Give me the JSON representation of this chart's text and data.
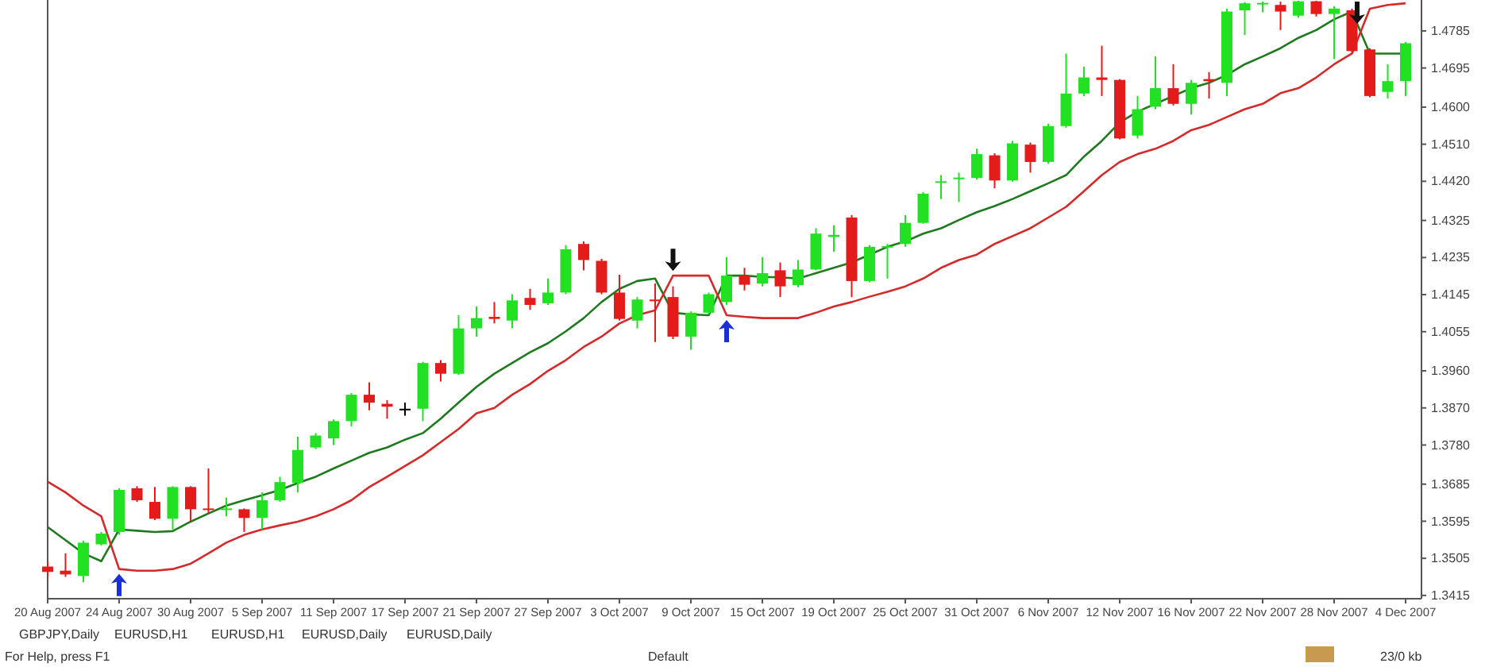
{
  "chart_data": {
    "type": "candlestick",
    "categories": [
      "20 Aug 2007",
      null,
      null,
      null,
      "24 Aug 2007",
      null,
      null,
      null,
      "30 Aug 2007",
      null,
      null,
      null,
      "5 Sep 2007",
      null,
      null,
      null,
      "11 Sep 2007",
      null,
      null,
      null,
      "17 Sep 2007",
      null,
      null,
      null,
      "21 Sep 2007",
      null,
      null,
      null,
      "27 Sep 2007",
      null,
      null,
      null,
      "3 Oct 2007",
      null,
      null,
      null,
      "9 Oct 2007",
      null,
      null,
      null,
      "15 Oct 2007",
      null,
      null,
      null,
      "19 Oct 2007",
      null,
      null,
      null,
      "25 Oct 2007",
      null,
      null,
      null,
      "31 Oct 2007",
      null,
      null,
      null,
      "6 Nov 2007",
      null,
      null,
      null,
      "12 Nov 2007",
      null,
      null,
      null,
      "16 Nov 2007",
      null,
      null,
      null,
      "22 Nov 2007",
      null,
      null,
      null,
      "28 Nov 2007",
      null,
      null,
      null,
      "4 Dec 2007"
    ],
    "ohlc": [
      [
        1.3485,
        1.3498,
        1.346,
        1.3472
      ],
      [
        1.3475,
        1.3517,
        1.346,
        1.3466
      ],
      [
        1.3462,
        1.3547,
        1.3447,
        1.3543
      ],
      [
        1.3539,
        1.3569,
        1.3536,
        1.3565
      ],
      [
        1.3569,
        1.3675,
        1.3562,
        1.3671
      ],
      [
        1.3675,
        1.368,
        1.3642,
        1.3646
      ],
      [
        1.3642,
        1.3678,
        1.3598,
        1.3601
      ],
      [
        1.3601,
        1.368,
        1.3575,
        1.3678
      ],
      [
        1.3678,
        1.368,
        1.3594,
        1.3624
      ],
      [
        1.3626,
        1.3723,
        1.3614,
        1.3624
      ],
      [
        1.3624,
        1.3652,
        1.3607,
        1.3626
      ],
      [
        1.3624,
        1.3626,
        1.3569,
        1.3603
      ],
      [
        1.3603,
        1.3665,
        1.3575,
        1.3646
      ],
      [
        1.3646,
        1.3703,
        1.3642,
        1.369
      ],
      [
        1.3688,
        1.38,
        1.3665,
        1.3768
      ],
      [
        1.3774,
        1.3809,
        1.377,
        1.3803
      ],
      [
        1.3796,
        1.3842,
        1.378,
        1.3838
      ],
      [
        1.3838,
        1.3906,
        1.3825,
        1.3902
      ],
      [
        1.3902,
        1.3932,
        1.3864,
        1.3883
      ],
      [
        1.388,
        1.3889,
        1.3844,
        1.3873
      ],
      [
        1.3868,
        1.3883,
        1.3851,
        1.3866
      ],
      [
        1.3868,
        1.3982,
        1.3838,
        1.3979
      ],
      [
        1.3979,
        1.3986,
        1.3934,
        1.3953
      ],
      [
        1.3953,
        1.4095,
        1.395,
        1.4063
      ],
      [
        1.4063,
        1.4116,
        1.4043,
        1.4088
      ],
      [
        1.4091,
        1.4127,
        1.4075,
        1.4086
      ],
      [
        1.4082,
        1.4146,
        1.4063,
        1.4131
      ],
      [
        1.4137,
        1.4159,
        1.4108,
        1.412
      ],
      [
        1.4124,
        1.4184,
        1.412,
        1.415
      ],
      [
        1.415,
        1.4265,
        1.4146,
        1.4255
      ],
      [
        1.4268,
        1.4274,
        1.4204,
        1.4229
      ],
      [
        1.4227,
        1.4232,
        1.4146,
        1.415
      ],
      [
        1.415,
        1.4193,
        1.4082,
        1.4086
      ],
      [
        1.4082,
        1.4139,
        1.4063,
        1.4133
      ],
      [
        1.4133,
        1.4172,
        1.403,
        1.4129
      ],
      [
        1.4139,
        1.4165,
        1.4037,
        1.4043
      ],
      [
        1.4043,
        1.4104,
        1.4011,
        1.4101
      ],
      [
        1.4101,
        1.415,
        1.4098,
        1.4146
      ],
      [
        1.4127,
        1.4236,
        1.412,
        1.4191
      ],
      [
        1.4191,
        1.421,
        1.4155,
        1.4169
      ],
      [
        1.4172,
        1.4236,
        1.4165,
        1.4197
      ],
      [
        1.4204,
        1.4223,
        1.4139,
        1.4165
      ],
      [
        1.4168,
        1.4229,
        1.4163,
        1.4206
      ],
      [
        1.4206,
        1.4306,
        1.4204,
        1.4293
      ],
      [
        1.4285,
        1.4313,
        1.4249,
        1.429
      ],
      [
        1.4332,
        1.4338,
        1.4139,
        1.4178
      ],
      [
        1.4178,
        1.4265,
        1.4175,
        1.4261
      ],
      [
        1.4259,
        1.4268,
        1.4184,
        1.4263
      ],
      [
        1.4268,
        1.4338,
        1.4261,
        1.4319
      ],
      [
        1.4319,
        1.4394,
        1.4317,
        1.439
      ],
      [
        1.4418,
        1.4435,
        1.4377,
        1.442
      ],
      [
        1.4427,
        1.4441,
        1.437,
        1.4429
      ],
      [
        1.4428,
        1.4499,
        1.4424,
        1.4486
      ],
      [
        1.4483,
        1.4488,
        1.4403,
        1.4422
      ],
      [
        1.4422,
        1.4518,
        1.4419,
        1.4512
      ],
      [
        1.4509,
        1.4514,
        1.4441,
        1.4467
      ],
      [
        1.4467,
        1.456,
        1.4463,
        1.4554
      ],
      [
        1.4554,
        1.473,
        1.455,
        1.4633
      ],
      [
        1.4633,
        1.4698,
        1.4627,
        1.4672
      ],
      [
        1.4672,
        1.4749,
        1.4627,
        1.4666
      ],
      [
        1.4666,
        1.4668,
        1.4522,
        1.4524
      ],
      [
        1.4531,
        1.4627,
        1.4524,
        1.4595
      ],
      [
        1.4601,
        1.4723,
        1.4595,
        1.4646
      ],
      [
        1.4646,
        1.4704,
        1.4604,
        1.4608
      ],
      [
        1.4608,
        1.4666,
        1.4582,
        1.4659
      ],
      [
        1.4668,
        1.4685,
        1.4621,
        1.4663
      ],
      [
        1.4659,
        1.4839,
        1.4627,
        1.4832
      ],
      [
        1.4835,
        1.4855,
        1.4775,
        1.4852
      ],
      [
        1.485,
        1.4856,
        1.483,
        1.4853
      ],
      [
        1.4848,
        1.4856,
        1.4787,
        1.4832
      ],
      [
        1.4822,
        1.4858,
        1.4817,
        1.4857
      ],
      [
        1.4857,
        1.4858,
        1.482,
        1.4826
      ],
      [
        1.4826,
        1.4845,
        1.4717,
        1.4839
      ],
      [
        1.4835,
        1.4839,
        1.4732,
        1.4736
      ],
      [
        1.474,
        1.4743,
        1.4624,
        1.4627
      ],
      [
        1.4637,
        1.4704,
        1.4621,
        1.4663
      ],
      [
        1.4663,
        1.4758,
        1.4627,
        1.4755
      ]
    ],
    "colors": [
      "#e31b1b",
      "#e31b1b",
      "#22e022",
      "#22e022",
      "#22e022",
      "#e31b1b",
      "#e31b1b",
      "#22e022",
      "#e31b1b",
      "#e31b1b",
      "#22e022",
      "#e31b1b",
      "#22e022",
      "#22e022",
      "#22e022",
      "#22e022",
      "#22e022",
      "#22e022",
      "#e31b1b",
      "#e31b1b",
      "#000000",
      "#22e022",
      "#e31b1b",
      "#22e022",
      "#22e022",
      "#e31b1b",
      "#22e022",
      "#e31b1b",
      "#22e022",
      "#22e022",
      "#e31b1b",
      "#e31b1b",
      "#e31b1b",
      "#22e022",
      "#e31b1b",
      "#e31b1b",
      "#22e022",
      "#22e022",
      "#22e022",
      "#e31b1b",
      "#22e022",
      "#e31b1b",
      "#22e022",
      "#22e022",
      "#22e022",
      "#e31b1b",
      "#22e022",
      "#22e022",
      "#22e022",
      "#22e022",
      "#22e022",
      "#22e022",
      "#22e022",
      "#e31b1b",
      "#22e022",
      "#e31b1b",
      "#22e022",
      "#22e022",
      "#22e022",
      "#e31b1b",
      "#e31b1b",
      "#22e022",
      "#22e022",
      "#e31b1b",
      "#22e022",
      "#e31b1b",
      "#22e022",
      "#22e022",
      "#22e022",
      "#e31b1b",
      "#22e022",
      "#e31b1b",
      "#22e022",
      "#e31b1b",
      "#e31b1b",
      "#22e022",
      "#22e022"
    ],
    "series": [
      {
        "type": "line",
        "color": "#1f7a1f",
        "values": [
          1.3581,
          1.3549,
          1.3517,
          1.3498,
          1.3575,
          1.3572,
          1.3569,
          1.3571,
          1.3594,
          1.3614,
          1.3633,
          1.3646,
          1.3658,
          1.3671,
          1.3688,
          1.3703,
          1.3723,
          1.3742,
          1.3761,
          1.3774,
          1.3793,
          1.3809,
          1.3844,
          1.3883,
          1.3921,
          1.3953,
          1.3979,
          1.4005,
          1.4027,
          1.4056,
          1.4088,
          1.4127,
          1.4159,
          1.4178,
          1.4184,
          1.4101,
          1.4097,
          1.4095,
          1.4191,
          1.4191,
          1.4188,
          1.4187,
          1.4184,
          1.4197,
          1.421,
          1.4223,
          1.4242,
          1.4261,
          1.4274,
          1.4293,
          1.4306,
          1.4326,
          1.4345,
          1.436,
          1.4377,
          1.4396,
          1.4415,
          1.4435,
          1.448,
          1.4518,
          1.4563,
          1.4589,
          1.4608,
          1.4627,
          1.4646,
          1.4659,
          1.4678,
          1.4704,
          1.4723,
          1.4743,
          1.4768,
          1.4787,
          1.4813,
          1.4832,
          1.473,
          1.473,
          1.473
        ]
      },
      {
        "type": "line",
        "color": "#d42a2a",
        "values": [
          1.3691,
          1.3665,
          1.3633,
          1.3607,
          1.3479,
          1.3475,
          1.3475,
          1.3479,
          1.3492,
          1.3517,
          1.3543,
          1.3562,
          1.3575,
          1.3585,
          1.3594,
          1.3607,
          1.3624,
          1.3646,
          1.3678,
          1.3703,
          1.3729,
          1.3755,
          1.3787,
          1.3819,
          1.3857,
          1.387,
          1.3902,
          1.3928,
          1.396,
          1.3986,
          1.4018,
          1.4043,
          1.4075,
          1.4095,
          1.4107,
          1.4191,
          1.4191,
          1.4191,
          1.4095,
          1.4091,
          1.4088,
          1.4088,
          1.4088,
          1.4101,
          1.4116,
          1.4127,
          1.414,
          1.4152,
          1.4165,
          1.4184,
          1.421,
          1.4229,
          1.4242,
          1.4268,
          1.4287,
          1.4306,
          1.4332,
          1.4358,
          1.4396,
          1.4435,
          1.4467,
          1.4486,
          1.4499,
          1.4518,
          1.4544,
          1.4557,
          1.4576,
          1.4595,
          1.4608,
          1.4634,
          1.4646,
          1.4672,
          1.4704,
          1.473,
          1.4839,
          1.4848,
          1.4852
        ]
      }
    ],
    "ylim": [
      1.3407,
      1.486
    ],
    "yticks": [
      1.3415,
      1.3505,
      1.3595,
      1.3685,
      {
        "value": 1.378,
        "label": "1.3780"
      },
      {
        "value": 1.387,
        "label": "1.3870"
      },
      {
        "value": 1.396,
        "label": "1.3960"
      },
      1.4055,
      1.4145,
      1.4235,
      1.4325,
      {
        "value": 1.442,
        "label": "1.4420"
      },
      {
        "value": 1.451,
        "label": "1.4510"
      },
      {
        "value": 1.46,
        "label": "1.4600"
      },
      1.4695,
      1.4785
    ],
    "annotations": [
      "GBPJPY,Daily",
      "EURUSD,H1",
      "EURUSD,H1",
      "EURUSD,Daily",
      "EURUSD,Daily",
      "For Help, press F1",
      "Default",
      "23/0 kb"
    ]
  }
}
